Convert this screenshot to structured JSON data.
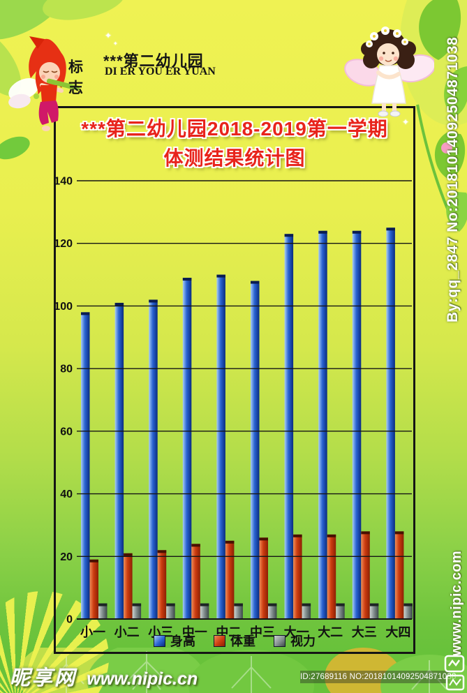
{
  "logo": {
    "mark": "标志",
    "name": "***第二幼儿园",
    "pinyin": "DI ER YOU ER YUAN"
  },
  "chart_data": {
    "type": "bar",
    "title_line1": "***第二幼儿园2018-2019第一学期",
    "title_line2": "体测结果统计图",
    "categories": [
      "小一",
      "小二",
      "小三",
      "中一",
      "中二",
      "中三",
      "大一",
      "大二",
      "大三",
      "大四"
    ],
    "series": [
      {
        "key": "height",
        "name": "身高",
        "color": "#2a64d2",
        "gradient": [
          "#a9cdf5",
          "#2a64d2",
          "#0a2c80"
        ],
        "cap": "#0a1c50",
        "values": [
          98,
          101,
          102,
          109,
          110,
          108,
          123,
          124,
          124,
          125
        ]
      },
      {
        "key": "weight",
        "name": "体重",
        "color": "#cc3c10",
        "gradient": [
          "#f08c58",
          "#cc3c10",
          "#8c2004"
        ],
        "cap": "#481000",
        "values": [
          19,
          21,
          22,
          24,
          25,
          26,
          27,
          27,
          28,
          28
        ]
      },
      {
        "key": "vision",
        "name": "视力",
        "color": "#5a6664",
        "gradient": [
          "#ccd4d2",
          "#849090",
          "#3c4848"
        ],
        "cap": "#1c2424",
        "values": [
          5,
          5,
          5,
          5,
          5,
          5,
          5,
          5,
          5,
          5
        ]
      }
    ],
    "ylim": [
      0,
      140
    ],
    "ytick_step": 20,
    "yticks": [
      0,
      20,
      40,
      60,
      80,
      100,
      120,
      140
    ],
    "grid": true,
    "legend_position": "bottom"
  },
  "footer": {
    "site_name": "昵享网",
    "site_url": "www.nipic.cn",
    "id_text": "ID:27689116 NO:20181014092504871038"
  },
  "side": {
    "credit": "By:qq_2847 No:20181014092504871038",
    "site": "www.nipic.com"
  },
  "colors": {
    "title_red": "#e8231b",
    "bg_top": "#eff253",
    "bg_bottom": "#5fbe37",
    "band_green": "#68c23a"
  }
}
